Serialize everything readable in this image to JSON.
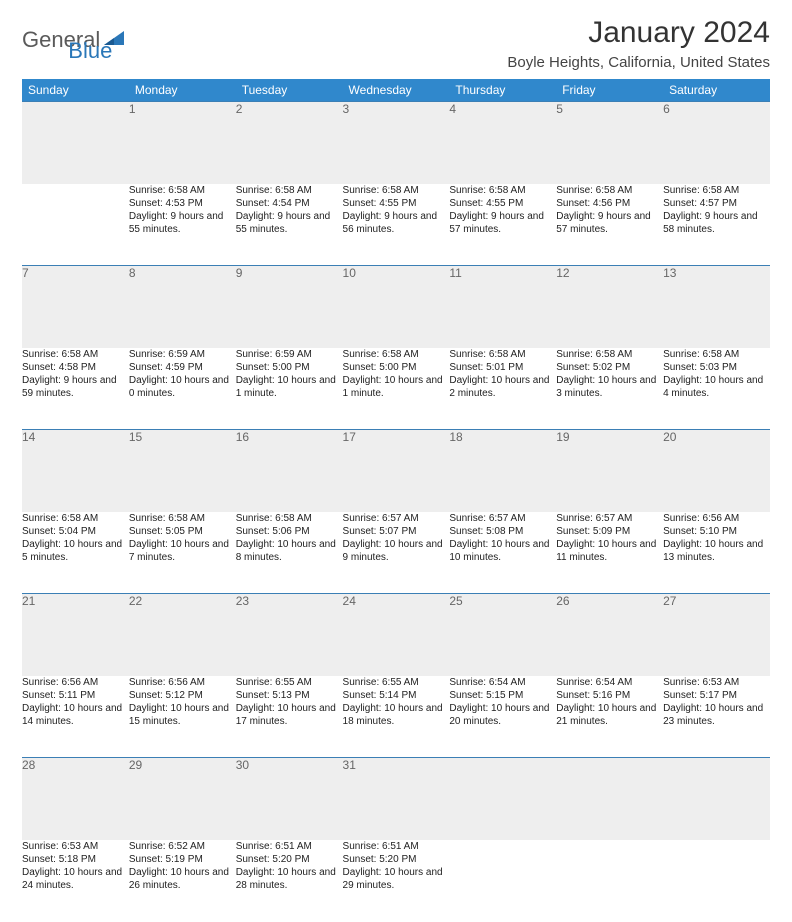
{
  "logo": {
    "text1": "General",
    "text2": "Blue"
  },
  "title": "January 2024",
  "location": "Boyle Heights, California, United States",
  "colors": {
    "header_bg": "#3088cc",
    "header_text": "#ffffff",
    "day_band_bg": "#eeeeee",
    "day_band_text": "#666666",
    "day_band_border": "#3b7fb5",
    "body_text": "#222222",
    "logo_gray": "#5a5a5a",
    "logo_blue": "#2a77b8",
    "background": "#ffffff"
  },
  "typography": {
    "body_font": "Arial",
    "title_fontsize": 30,
    "location_fontsize": 15,
    "weekday_fontsize": 12,
    "daynum_fontsize": 12,
    "cell_fontsize": 10
  },
  "weekdays": [
    "Sunday",
    "Monday",
    "Tuesday",
    "Wednesday",
    "Thursday",
    "Friday",
    "Saturday"
  ],
  "weeks": [
    [
      null,
      {
        "n": "1",
        "sr": "6:58 AM",
        "ss": "4:53 PM",
        "dl": "9 hours and 55 minutes."
      },
      {
        "n": "2",
        "sr": "6:58 AM",
        "ss": "4:54 PM",
        "dl": "9 hours and 55 minutes."
      },
      {
        "n": "3",
        "sr": "6:58 AM",
        "ss": "4:55 PM",
        "dl": "9 hours and 56 minutes."
      },
      {
        "n": "4",
        "sr": "6:58 AM",
        "ss": "4:55 PM",
        "dl": "9 hours and 57 minutes."
      },
      {
        "n": "5",
        "sr": "6:58 AM",
        "ss": "4:56 PM",
        "dl": "9 hours and 57 minutes."
      },
      {
        "n": "6",
        "sr": "6:58 AM",
        "ss": "4:57 PM",
        "dl": "9 hours and 58 minutes."
      }
    ],
    [
      {
        "n": "7",
        "sr": "6:58 AM",
        "ss": "4:58 PM",
        "dl": "9 hours and 59 minutes."
      },
      {
        "n": "8",
        "sr": "6:59 AM",
        "ss": "4:59 PM",
        "dl": "10 hours and 0 minutes."
      },
      {
        "n": "9",
        "sr": "6:59 AM",
        "ss": "5:00 PM",
        "dl": "10 hours and 1 minute."
      },
      {
        "n": "10",
        "sr": "6:58 AM",
        "ss": "5:00 PM",
        "dl": "10 hours and 1 minute."
      },
      {
        "n": "11",
        "sr": "6:58 AM",
        "ss": "5:01 PM",
        "dl": "10 hours and 2 minutes."
      },
      {
        "n": "12",
        "sr": "6:58 AM",
        "ss": "5:02 PM",
        "dl": "10 hours and 3 minutes."
      },
      {
        "n": "13",
        "sr": "6:58 AM",
        "ss": "5:03 PM",
        "dl": "10 hours and 4 minutes."
      }
    ],
    [
      {
        "n": "14",
        "sr": "6:58 AM",
        "ss": "5:04 PM",
        "dl": "10 hours and 5 minutes."
      },
      {
        "n": "15",
        "sr": "6:58 AM",
        "ss": "5:05 PM",
        "dl": "10 hours and 7 minutes."
      },
      {
        "n": "16",
        "sr": "6:58 AM",
        "ss": "5:06 PM",
        "dl": "10 hours and 8 minutes."
      },
      {
        "n": "17",
        "sr": "6:57 AM",
        "ss": "5:07 PM",
        "dl": "10 hours and 9 minutes."
      },
      {
        "n": "18",
        "sr": "6:57 AM",
        "ss": "5:08 PM",
        "dl": "10 hours and 10 minutes."
      },
      {
        "n": "19",
        "sr": "6:57 AM",
        "ss": "5:09 PM",
        "dl": "10 hours and 11 minutes."
      },
      {
        "n": "20",
        "sr": "6:56 AM",
        "ss": "5:10 PM",
        "dl": "10 hours and 13 minutes."
      }
    ],
    [
      {
        "n": "21",
        "sr": "6:56 AM",
        "ss": "5:11 PM",
        "dl": "10 hours and 14 minutes."
      },
      {
        "n": "22",
        "sr": "6:56 AM",
        "ss": "5:12 PM",
        "dl": "10 hours and 15 minutes."
      },
      {
        "n": "23",
        "sr": "6:55 AM",
        "ss": "5:13 PM",
        "dl": "10 hours and 17 minutes."
      },
      {
        "n": "24",
        "sr": "6:55 AM",
        "ss": "5:14 PM",
        "dl": "10 hours and 18 minutes."
      },
      {
        "n": "25",
        "sr": "6:54 AM",
        "ss": "5:15 PM",
        "dl": "10 hours and 20 minutes."
      },
      {
        "n": "26",
        "sr": "6:54 AM",
        "ss": "5:16 PM",
        "dl": "10 hours and 21 minutes."
      },
      {
        "n": "27",
        "sr": "6:53 AM",
        "ss": "5:17 PM",
        "dl": "10 hours and 23 minutes."
      }
    ],
    [
      {
        "n": "28",
        "sr": "6:53 AM",
        "ss": "5:18 PM",
        "dl": "10 hours and 24 minutes."
      },
      {
        "n": "29",
        "sr": "6:52 AM",
        "ss": "5:19 PM",
        "dl": "10 hours and 26 minutes."
      },
      {
        "n": "30",
        "sr": "6:51 AM",
        "ss": "5:20 PM",
        "dl": "10 hours and 28 minutes."
      },
      {
        "n": "31",
        "sr": "6:51 AM",
        "ss": "5:20 PM",
        "dl": "10 hours and 29 minutes."
      },
      null,
      null,
      null
    ]
  ],
  "labels": {
    "sunrise": "Sunrise:",
    "sunset": "Sunset:",
    "daylight": "Daylight:"
  }
}
